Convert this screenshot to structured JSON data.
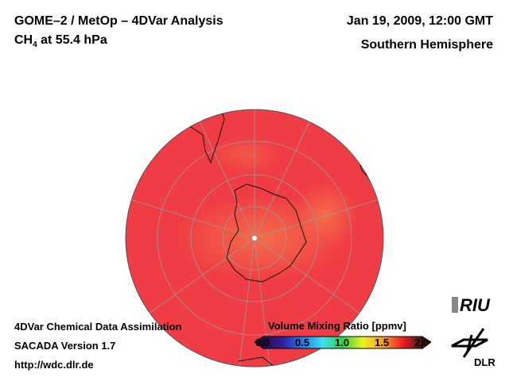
{
  "title": {
    "line1": "GOME–2 / MetOp – 4DVar Analysis",
    "species": "CH",
    "species_sub": "4",
    "level": " at 55.4 hPa"
  },
  "date": "Jan 19, 2009, 12:00 GMT",
  "region": "Southern Hemisphere",
  "footer": {
    "line1": "4DVar Chemical Data Assimilation",
    "line2": "SACADA Version 1.7",
    "line3": "http://wdc.dlr.de"
  },
  "colorbar": {
    "title": "Volume Mixing Ratio [ppmv]",
    "ticks": [
      "0.0",
      "0.5",
      "1.0",
      "1.5",
      "2.0"
    ],
    "range": [
      0,
      2
    ],
    "colors": [
      "#2a0a40",
      "#3020a0",
      "#2080f0",
      "#40e0f0",
      "#30d040",
      "#f0f020",
      "#f0a030",
      "#f02020",
      "#401818"
    ]
  },
  "map": {
    "fill": "#f03c44",
    "highlight": "#f5784a"
  },
  "logos": {
    "riu": "RIU",
    "dlr": "DLR"
  }
}
